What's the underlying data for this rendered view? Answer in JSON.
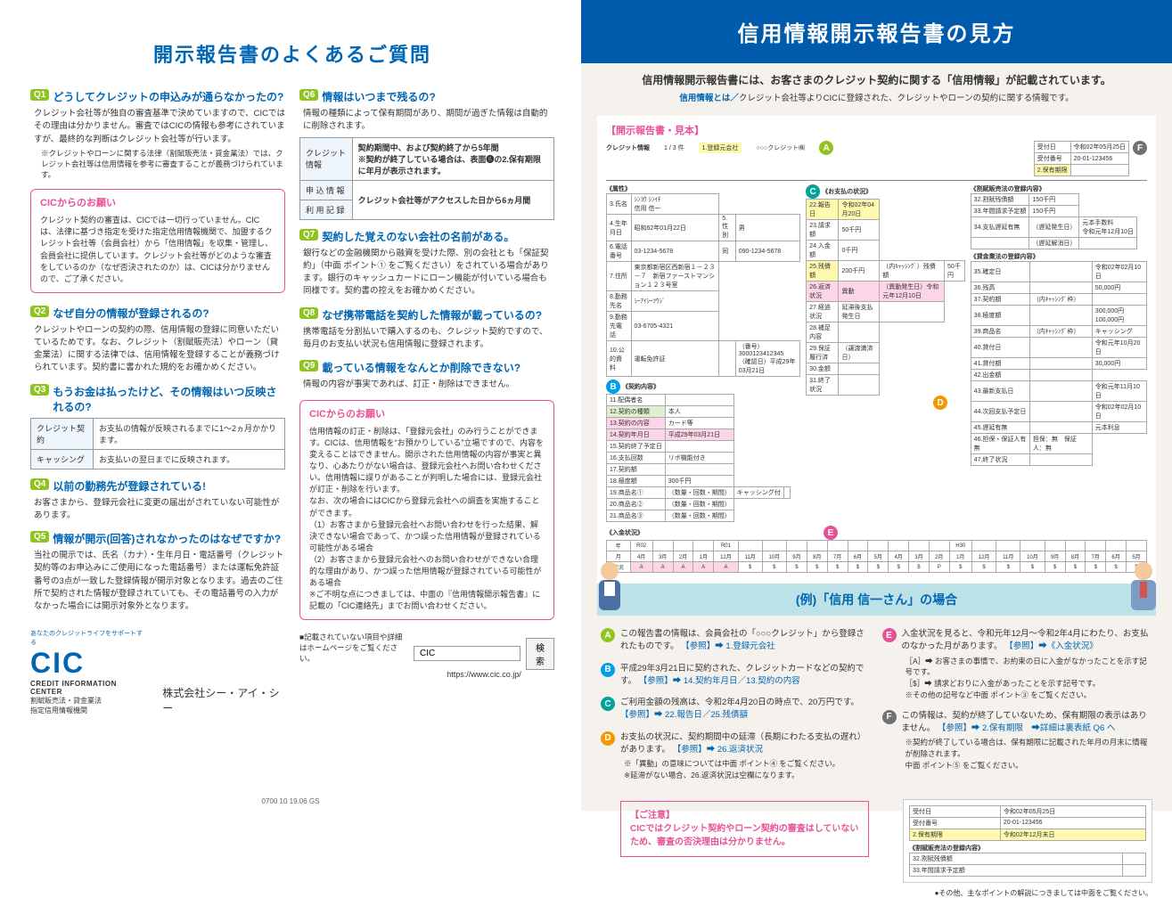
{
  "left": {
    "title": "開示報告書のよくあるご質問",
    "col1": {
      "q1": {
        "badge": "Q1",
        "head": "どうしてクレジットの申込みが通らなかったの?",
        "body": "クレジット会社等が独自の審査基準で決めていますので、CICではその理由は分かりません。審査ではCICの情報も参考にされていますが、最終的な判断はクレジット会社等が行います。",
        "note": "※クレジットやローンに関する法律（割賦販売法・貸金業法）では、クレジット会社等は信用情報を参考に審査することが義務づけられています。"
      },
      "pink1": {
        "title": "CICからのお願い",
        "body": "クレジット契約の審査は、CICでは一切行っていません。CICは、法律に基づき指定を受けた指定信用情報機関で、加盟するクレジット会社等（会員会社）から「信用情報」を収集・管理し、会員会社に提供しています。クレジット会社等がどのような審査をしているのか（なぜ否決されたのか）は、CICは分かりませんので、ご了承ください。"
      },
      "q2": {
        "badge": "Q2",
        "head": "なぜ自分の情報が登録されるの?",
        "body": "クレジットやローンの契約の際、信用情報の登録に同意いただいているためです。なお、クレジット（割賦販売法）やローン（貸金業法）に関する法律では、信用情報を登録することが義務づけられています。契約書に書かれた規約をお確かめください。"
      },
      "q3": {
        "badge": "Q3",
        "head": "もうお金は払ったけど、その情報はいつ反映されるの?",
        "table": [
          [
            "クレジット契約",
            "お支払の情報が反映されるまでに1～2ヵ月かかります。"
          ],
          [
            "キャッシング",
            "お支払いの翌日までに反映されます。"
          ]
        ]
      },
      "q4": {
        "badge": "Q4",
        "head": "以前の勤務先が登録されている!",
        "body": "お客さまから、登録元会社に変更の届出がされていない可能性があります。"
      },
      "q5": {
        "badge": "Q5",
        "head": "情報が開示(回答)されなかったのはなぜですか?",
        "body": "当社の開示では、氏名（カナ）・生年月日・電話番号（クレジット契約等のお申込みにご使用になった電話番号）または運転免許証番号の3点が一致した登録情報が開示対象となります。過去のご住所で契約された情報が登録されていても、その電話番号の入力がなかった場合には開示対象外となります。"
      }
    },
    "col2": {
      "q6": {
        "badge": "Q6",
        "head": "情報はいつまで残るの?",
        "body": "情報の種類によって保有期間があり、期間が過ぎた情報は自動的に削除されます。",
        "table_rows": [
          [
            "クレジット情報",
            "契約期間中、および契約終了から5年間\n※契約が終了している場合は、表面❻の2.保有期限 に年月が表示されます。"
          ],
          [
            "申 込 情 報",
            "クレジット会社等がアクセスした日から6ヵ月間"
          ],
          [
            "利 用 記 録",
            ""
          ]
        ]
      },
      "q7": {
        "badge": "Q7",
        "head": "契約した覚えのない会社の名前がある。",
        "body": "銀行などの金融機関から融資を受けた際、別の会社とも「保証契約」（中面 ポイント① をご覧ください）をされている場合があります。銀行のキャッシュカードにローン機能が付いている場合も同様です。契約書の控えをお確かめください。"
      },
      "q8": {
        "badge": "Q8",
        "head": "なぜ携帯電話を契約した情報が載っているの?",
        "body": "携帯電話を分割払いで購入するのも、クレジット契約ですので、毎月のお支払い状況も信用情報に登録されます。"
      },
      "q9": {
        "badge": "Q9",
        "head": "載っている情報をなんとか削除できない?",
        "body": "情報の内容が事実であれば、訂正・削除はできません。"
      },
      "pink2": {
        "title": "CICからのお願い",
        "body": "信用情報の訂正・削除は、「登録元会社」のみ行うことができます。CICは、信用情報を“お預かりしている”立場ですので、内容を変えることはできません。開示された信用情報の内容が事実と異なり、心あたりがない場合は、登録元会社へお問い合わせください。信用情報に誤りがあることが判明した場合には、登録元会社が訂正・削除を行います。\nなお、次の場合にはCICから登録元会社への調査を実施することができます。\n（1）お客さまから登録元会社へお問い合わせを行った結果、解決できない場合であって、かつ誤った信用情報が登録されている可能性がある場合\n（2）お客さまから登録元会社へのお問い合わせができない合理的な理由があり、かつ誤った信用情報が登録されている可能性がある場合\n※ご不明な点につきましては、中面の『信用情報開示報告書』に記載の「CIC連絡先」までお問い合わせください。"
      }
    },
    "search": {
      "note": "■記載されていない項目や詳細はホームページをご覧ください。",
      "value": "CIC",
      "button": "検索",
      "url": "https://www.cic.co.jp/"
    },
    "logo": {
      "arc": "あなたのクレジットライフをサポートする",
      "big": "CIC",
      "sub": "CREDIT INFORMATION CENTER",
      "sub2": "割賦販売法・貸金業法\n指定信用情報機関",
      "company": "株式会社シー・アイ・シー"
    },
    "foot": "0700 10 19.06 GS"
  },
  "right": {
    "band": "信用情報開示報告書の見方",
    "intro1": "信用情報開示報告書には、お客さまのクレジット契約に関する「信用情報」が記載されています。",
    "intro2a": "信用情報とは／",
    "intro2b": "クレジット会社等よりCICに登録された、クレジットやローンの契約に関する情報です。",
    "sample_title": "【開示報告書・見本】",
    "sample": {
      "header_left_label": "クレジット情報",
      "header_pages": "1 / 3 件",
      "reg_label": "1.登録元会社",
      "reg_value": "○○○クレジット㈱",
      "upper_right": [
        [
          "受付日",
          "令和02年05月25日"
        ],
        [
          "受付番号",
          "20-01-123456"
        ],
        [
          "2.保有期限",
          ""
        ]
      ],
      "attr_title": "《属性》",
      "attr_rows": [
        [
          "3.氏名",
          "ｼﾝﾖｳ ｼﾝｲﾁ\n信用 信一"
        ],
        [
          "4.生年月日",
          "昭和62年01月22日",
          "5.性別",
          "男"
        ],
        [
          "6.電話番号",
          "03-1234-5678",
          "同",
          "090-1234-5678"
        ],
        [
          "7.住所",
          "東京都新宿区西新宿１－２３－７　新宿ファーストマンション１２３号室"
        ],
        [
          "8.勤務先名",
          "ｼｰｱｲｼｰﾂｳｼﾞ"
        ],
        [
          "9.勤務先電話",
          "03-6705-4321"
        ],
        [
          "10.公的資料",
          "運転免許証",
          "",
          "（番号）3000123412345\n（確認日）平成29年03月21日"
        ]
      ],
      "contract_title": "《契約内容》",
      "contract_rows": [
        [
          "11.配偶者名",
          ""
        ],
        [
          "12.契約の種類",
          "本人"
        ],
        [
          "13.契約の内容",
          "カード等"
        ],
        [
          "14.契約年月日",
          "平成29年03月21日"
        ],
        [
          "15.契約終了予定日",
          ""
        ],
        [
          "16.支払回数",
          "リボ機能付き"
        ],
        [
          "17.契約額",
          ""
        ],
        [
          "18.極度額",
          "300千円"
        ],
        [
          "19.商品名①",
          "（数量・回数・期間）",
          "キャッシング付",
          ""
        ],
        [
          "20.商品名②",
          "（数量・回数・期間）"
        ],
        [
          "21.商品名③",
          "（数量・回数・期間）"
        ]
      ],
      "pay_title": "《お支払の状況》",
      "pay_rows": [
        [
          "22.報告日",
          "令和02年04月20日"
        ],
        [
          "23.請求額",
          "50千円"
        ],
        [
          "24.入金額",
          "0千円"
        ],
        [
          "25.残債額",
          "200千円",
          "（内ｷｬｯｼﾝｸﾞ）残債額",
          "50千円"
        ],
        [
          "26.返済状況",
          "異動",
          "（異動発生日）令和元年12月10日"
        ],
        [
          "27.経過状況",
          "延滞後支払発生日",
          ""
        ],
        [
          "28.補足内容",
          ""
        ],
        [
          "29.保証履行済",
          "（譲渡満済日）"
        ],
        [
          "30.金額",
          ""
        ],
        [
          "31.終了状況",
          ""
        ]
      ],
      "kappu_title": "《割賦販売法の登録内容》",
      "kappu_rows": [
        [
          "32.割賦残債額",
          "150千円"
        ],
        [
          "33.年間請求予定額",
          "150千円"
        ],
        [
          "34.支払遅延有無",
          "（遅延発生日）",
          "元本手数料\n令和元年12月10日"
        ],
        [
          "",
          "（遅延解消日）",
          ""
        ]
      ],
      "kashikin_title": "《貸金業法の登録内容》",
      "kashikin_rows": [
        [
          "35.確定日",
          "",
          "令和02年02月10日"
        ],
        [
          "36.残高",
          "",
          "50,000円"
        ],
        [
          "37.契約額",
          "（内ｷｬｯｼﾝｸﾞ枠）",
          ""
        ],
        [
          "38.極度額",
          "",
          "300,000円\n100,000円"
        ],
        [
          "39.商品名",
          "（内ｷｬｯｼﾝｸﾞ枠）",
          "キャッシング"
        ],
        [
          "40.貸付日",
          "",
          "令和元年10月20日"
        ],
        [
          "41.貸付額",
          "",
          "30,000円"
        ],
        [
          "42.出金額",
          ""
        ],
        [
          "43.最新支払日",
          "",
          "令和元年11月10日"
        ],
        [
          "44.次回支払予定日",
          "",
          "令和02年02月10日"
        ],
        [
          "45.遅延有無",
          "",
          "元本利息"
        ],
        [
          "46.担保・保証人有無",
          "担保：無　保証人：無"
        ],
        [
          "47.終了状況",
          ""
        ]
      ],
      "nyukin_title": "《入金状況》",
      "nyukin_header1": [
        "年",
        "R02",
        "",
        "",
        "",
        "R01",
        "",
        "",
        "",
        "",
        "",
        "",
        "",
        "",
        "",
        "",
        "H30",
        "",
        "",
        "",
        "",
        "",
        "",
        "",
        ""
      ],
      "nyukin_header2": [
        "月",
        "4月",
        "3月",
        "2月",
        "1月",
        "12月",
        "11月",
        "10月",
        "9月",
        "8月",
        "7月",
        "6月",
        "5月",
        "4月",
        "3月",
        "2月",
        "1月",
        "12月",
        "11月",
        "10月",
        "9月",
        "8月",
        "7月",
        "6月",
        "5月"
      ],
      "nyukin_row": [
        "状況",
        "A",
        "A",
        "A",
        "A",
        "A",
        "$",
        "$",
        "$",
        "$",
        "$",
        "$",
        "$",
        "$",
        "$",
        "P",
        "$",
        "$",
        "$",
        "$",
        "$",
        "$",
        "$",
        "$",
        "$"
      ]
    },
    "example_label": "(例)「信用 信一さん」の場合",
    "explain": {
      "left": [
        {
          "c": "A",
          "txt": "この報告書の情報は、会員会社の「○○○クレジット」から登録されたものです。",
          "ref": "【参照】➡ 1.登録元会社"
        },
        {
          "c": "B",
          "txt": "平成29年3月21日に契約された、クレジットカードなどの契約です。",
          "ref": "【参照】➡ 14.契約年月日／13.契約の内容"
        },
        {
          "c": "C",
          "txt": "ご利用金額の残高は、令和2年4月20日の時点で、20万円です。",
          "ref": "【参照】➡ 22.報告日／25.残債額"
        },
        {
          "c": "D",
          "txt": "お支払の状況に、契約期間中の延滞（長期にわたる支払の遅れ）があります。",
          "ref": "【参照】➡ 26.返済状況",
          "sub": "※「異動」の意味については中面 ポイント④ をご覧ください。\n※延滞がない場合、26.返済状況は空欄になります。"
        }
      ],
      "right": [
        {
          "c": "E",
          "txt": "入金状況を見ると、令和元年12月～令和2年4月にわたり、お支払のなかった月があります。",
          "ref": "【参照】➡《入金状況》",
          "sub": "［A］➡ お客さまの事情で、お約束の日に入金がなかったことを示す記号です。\n［$］➡ 請求どおりに入金があったことを示す記号です。\n※その他の記号など中面 ポイント③ をご覧ください。"
        },
        {
          "c": "F",
          "txt": "この情報は、契約が終了していないため、保有期限の表示はありません。",
          "ref": "【参照】➡ 2.保有期限　➡詳細は裏表紙 Q6 へ",
          "sub": "※契約が終了している場合は、保有期限に記載された年月の月末に情報が削除されます。\n中面 ポイント⑤ をご覧ください。"
        }
      ]
    },
    "mini_sample": {
      "rows": [
        [
          "受付日",
          "令和02年05月25日"
        ],
        [
          "受付番号",
          "20-01-123456"
        ],
        [
          "2.保有期限",
          "令和02年12月末日"
        ]
      ],
      "title": "《割賦販売法の登録内容》",
      "rows2": [
        [
          "32.割賦残債額",
          ""
        ],
        [
          "33.年間請求予定額",
          ""
        ]
      ]
    },
    "caution": {
      "title": "【ご注意】",
      "body": "CICではクレジット契約やローン契約の審査はしていないため、審査の否決理由は分かりません。"
    },
    "foot": "●その他、主なポイントの解説につきましては中面をご覧ください。"
  },
  "colors": {
    "blue": "#0066b3",
    "blueDark": "#005bac",
    "green": "#8fc31f",
    "pink": "#e75297",
    "orange": "#f39800",
    "teal": "#00a29a",
    "cyan": "#00a0e9",
    "gray": "#727171",
    "paleBlue": "#bce2e8",
    "beige": "#f5f2ed",
    "yellow": "#fff9b0",
    "palePink": "#fcd5e6"
  }
}
